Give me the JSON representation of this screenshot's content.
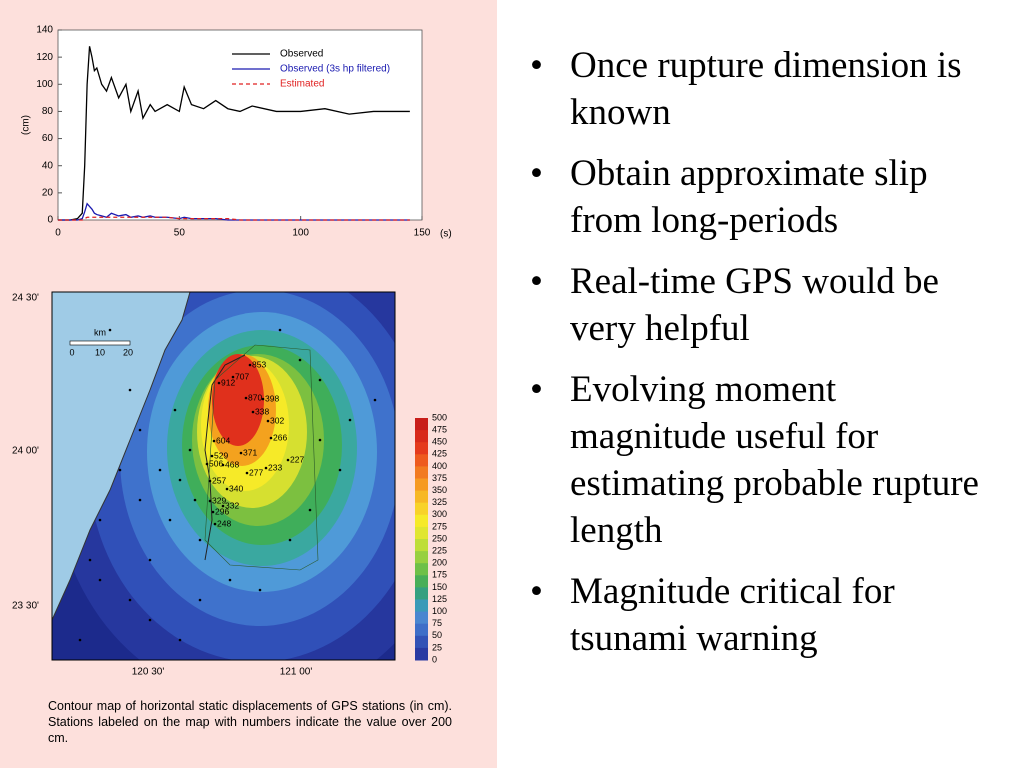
{
  "chart_data": {
    "type": "line",
    "x_label": "(s)",
    "y_label": "(cm)",
    "x": [
      0,
      5,
      8,
      10,
      11,
      12,
      13,
      14,
      15,
      16,
      18,
      20,
      22,
      25,
      28,
      30,
      33,
      35,
      38,
      40,
      45,
      50,
      52,
      55,
      60,
      65,
      70,
      75,
      80,
      90,
      100,
      110,
      120,
      130,
      140,
      145
    ],
    "series": [
      {
        "name": "Observed",
        "color": "#000000",
        "dash": false,
        "values": [
          0,
          0,
          1,
          5,
          40,
          100,
          128,
          120,
          110,
          112,
          100,
          95,
          105,
          90,
          100,
          80,
          95,
          75,
          85,
          80,
          85,
          80,
          98,
          85,
          82,
          88,
          82,
          80,
          84,
          80,
          80,
          82,
          78,
          80,
          80,
          80
        ]
      },
      {
        "name": "Observed (3s hp filtered)",
        "color": "#1a1ab0",
        "dash": false,
        "values": [
          0,
          0,
          0,
          1,
          6,
          12,
          10,
          8,
          5,
          4,
          3,
          2,
          5,
          3,
          4,
          2,
          3,
          2,
          3,
          2,
          2,
          1,
          2,
          1,
          1,
          1,
          0,
          0,
          0,
          0,
          0,
          0,
          0,
          0,
          0,
          0
        ]
      },
      {
        "name": "Estimated",
        "color": "#e02020",
        "dash": true,
        "values": [
          0,
          0,
          0,
          0,
          1,
          2,
          2,
          2,
          2,
          2,
          2,
          2,
          2,
          2,
          2,
          2,
          2,
          2,
          2,
          2,
          2,
          1,
          1,
          1,
          1,
          1,
          1,
          0,
          0,
          0,
          0,
          0,
          0,
          0,
          0,
          0
        ]
      }
    ],
    "xlim": [
      0,
      150
    ],
    "xticks": [
      0,
      50,
      100,
      150
    ],
    "ylim": [
      0,
      140
    ],
    "yticks": [
      0,
      20,
      40,
      60,
      80,
      100,
      120,
      140
    ],
    "legend": "upper right"
  },
  "map": {
    "lat_labels": [
      "24 30'",
      "24 00'",
      "23 30'"
    ],
    "lon_labels": [
      "120 30'",
      "121 00'"
    ],
    "scale": {
      "unit": "km",
      "ticks": [
        0,
        10,
        20
      ]
    },
    "colorbar_ticks": [
      500,
      475,
      450,
      425,
      400,
      375,
      350,
      325,
      300,
      275,
      250,
      225,
      200,
      175,
      150,
      125,
      100,
      75,
      50,
      25,
      0
    ],
    "stations": [
      853,
      707,
      912,
      870,
      398,
      338,
      302,
      266,
      604,
      371,
      529,
      506,
      468,
      277,
      233,
      227,
      257,
      340,
      329,
      332,
      296,
      248
    ],
    "caption": "Contour map of horizontal static displacements of GPS stations (in cm). Stations labeled on the map with numbers indicate the value over 200 cm."
  },
  "bullets": [
    "Once rupture dimension is known",
    "Obtain approximate slip from long-periods",
    "Real-time GPS would be very helpful",
    "Evolving moment magnitude useful for estimating probable rupture length",
    "Magnitude critical for tsunami warning"
  ]
}
